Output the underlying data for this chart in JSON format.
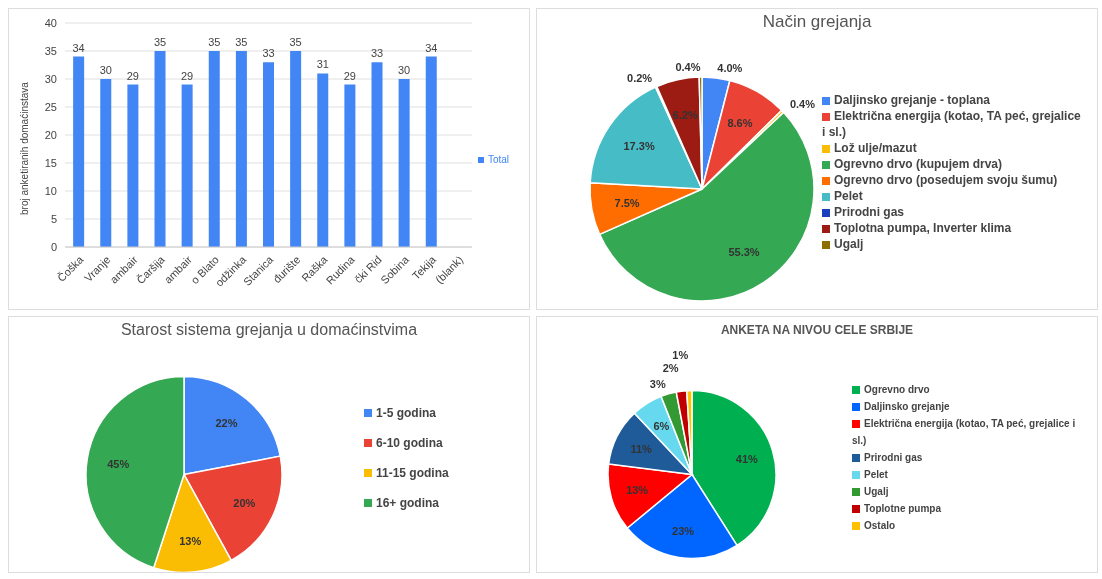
{
  "chart_data": [
    {
      "type": "bar",
      "ylabel": "broj anketiranih domaćinstava",
      "categories": [
        "Čoška",
        "Vranje",
        "ambair",
        "Čaršija",
        "ambair",
        "o Blato",
        "odžinka",
        "Stanica",
        "đurište",
        "Raška",
        "Rudina",
        "čki Rid",
        "Sobina",
        "Tekija",
        "(blank)"
      ],
      "series": [
        {
          "name": "Total",
          "color": "#4285f4",
          "values": [
            34,
            30,
            29,
            35,
            29,
            35,
            35,
            33,
            35,
            31,
            29,
            33,
            30,
            34,
            null
          ]
        }
      ],
      "ylim": [
        0,
        40
      ],
      "yticks": [
        0,
        5,
        10,
        15,
        20,
        25,
        30,
        35,
        40
      ],
      "grid": "y",
      "legend": "right",
      "data_labels": true
    },
    {
      "type": "pie",
      "title": "Način grejanja",
      "categories": [
        "Daljinsko grejanje - toplana",
        "Električna energija (kotao, TA peć, grejalice i sl.)",
        "Lož ulje/mazut",
        "Ogrevno drvo (kupujem drva)",
        "Ogrevno drvo (posedujem svoju šumu)",
        "Pelet",
        "Prirodni gas",
        "Toplotna pumpa, Inverter klima",
        "Ugalj"
      ],
      "values": [
        4.0,
        8.6,
        0.4,
        55.3,
        7.5,
        17.3,
        0.2,
        6.2,
        0.4
      ],
      "value_labels": [
        "4.0%",
        "8.6%",
        "0.4%",
        "55.3%",
        "7.5%",
        "17.3%",
        "0.2%",
        "6.2%",
        "0.4%"
      ],
      "colors": [
        "#4285f4",
        "#ea4335",
        "#fbbc04",
        "#34a853",
        "#ff6d01",
        "#46bdc6",
        "#1a3fbd",
        "#9c1b12",
        "#8d6e00"
      ],
      "legend": "right"
    },
    {
      "type": "pie",
      "title": "Starost sistema grejanja u domaćinstvima",
      "categories": [
        "1-5 godina",
        "6-10 godina",
        "11-15 godina",
        "16+ godina"
      ],
      "values": [
        22,
        20,
        13,
        45
      ],
      "value_labels": [
        "22%",
        "20%",
        "13%",
        "45%"
      ],
      "colors": [
        "#4285f4",
        "#ea4335",
        "#fbbc04",
        "#34a853"
      ],
      "legend": "right"
    },
    {
      "type": "pie",
      "title": "ANKETA NA NIVOU CELE SRBIJE",
      "categories": [
        "Ogrevno drvo",
        "Daljinsko grejanje",
        "Električna energija (kotao, TA peć, grejalice i sl.)",
        "Prirodni gas",
        "Pelet",
        "Ugalj",
        "Toplotne pumpa",
        "Ostalo"
      ],
      "values": [
        41,
        23,
        13,
        11,
        6,
        3,
        2,
        1
      ],
      "value_labels": [
        "41%",
        "23%",
        "13%",
        "11%",
        "6%",
        "3%",
        "2%",
        "1%"
      ],
      "colors": [
        "#00b050",
        "#0066ff",
        "#ff0000",
        "#1f5b99",
        "#66d9ee",
        "#339933",
        "#c00000",
        "#ffc000"
      ],
      "legend": "right"
    }
  ]
}
